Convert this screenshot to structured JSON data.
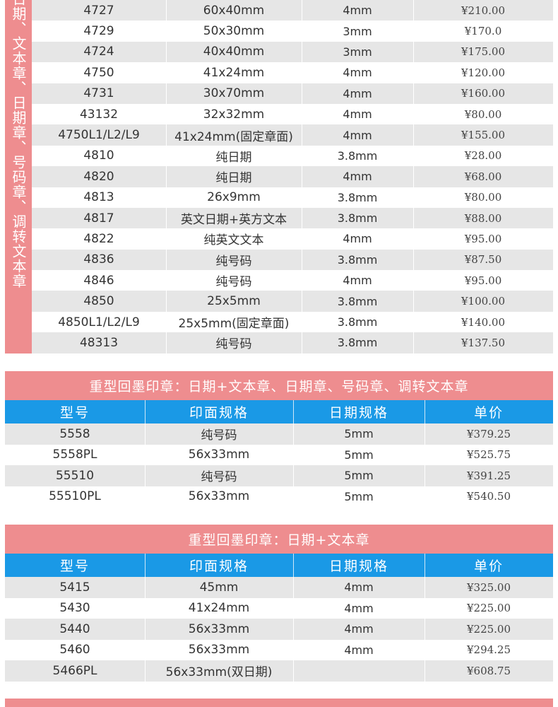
{
  "block1": {
    "vertical_label": "日期、文本章、日期章、号码章、调转文本章",
    "rows": [
      {
        "model": "4727",
        "size": "60x40mm",
        "date": "4mm",
        "price": "¥210.00"
      },
      {
        "model": "4729",
        "size": "50x30mm",
        "date": "3mm",
        "price": "¥170.0"
      },
      {
        "model": "4724",
        "size": "40x40mm",
        "date": "3mm",
        "price": "¥175.00"
      },
      {
        "model": "4750",
        "size": "41x24mm",
        "date": "4mm",
        "price": "¥120.00"
      },
      {
        "model": "4731",
        "size": "30x70mm",
        "date": "4mm",
        "price": "¥160.00"
      },
      {
        "model": "43132",
        "size": "32x32mm",
        "date": "4mm",
        "price": "¥80.00"
      },
      {
        "model": "4750L1/L2/L9",
        "size": "41x24mm(固定章面)",
        "date": "4mm",
        "price": "¥155.00"
      },
      {
        "model": "4810",
        "size": "纯日期",
        "date": "3.8mm",
        "price": "¥28.00"
      },
      {
        "model": "4820",
        "size": "纯日期",
        "date": "4mm",
        "price": "¥68.00"
      },
      {
        "model": "4813",
        "size": "26x9mm",
        "date": "3.8mm",
        "price": "¥80.00"
      },
      {
        "model": "4817",
        "size": "英文日期+英方文本",
        "date": "3.8mm",
        "price": "¥88.00"
      },
      {
        "model": "4822",
        "size": "纯英文文本",
        "date": "4mm",
        "price": "¥95.00"
      },
      {
        "model": "4836",
        "size": "纯号码",
        "date": "3.8mm",
        "price": "¥87.50"
      },
      {
        "model": "4846",
        "size": "纯号码",
        "date": "4mm",
        "price": "¥95.00"
      },
      {
        "model": "4850",
        "size": "25x5mm",
        "date": "3.8mm",
        "price": "¥100.00"
      },
      {
        "model": "4850L1/L2/L9",
        "size": "25x5mm(固定章面)",
        "date": "3.8mm",
        "price": "¥140.00"
      },
      {
        "model": "48313",
        "size": "纯号码",
        "date": "3.8mm",
        "price": "¥137.50"
      }
    ]
  },
  "sections": [
    {
      "title": "重型回墨印章：日期+文本章、日期章、号码章、调转文本章",
      "headers": {
        "model": "型号",
        "size": "印面规格",
        "date": "日期规格",
        "price": "单价"
      },
      "rows": [
        {
          "model": "5558",
          "size": "纯号码",
          "date": "5mm",
          "price": "¥379.25"
        },
        {
          "model": "5558PL",
          "size": "56x33mm",
          "date": "5mm",
          "price": "¥525.75"
        },
        {
          "model": "55510",
          "size": "纯号码",
          "date": "5mm",
          "price": "¥391.25"
        },
        {
          "model": "55510PL",
          "size": "56x33mm",
          "date": "5mm",
          "price": "¥540.50"
        }
      ]
    },
    {
      "title": "重型回墨印章：日期+文本章",
      "headers": {
        "model": "型号",
        "size": "印面规格",
        "date": "日期规格",
        "price": "单价"
      },
      "rows": [
        {
          "model": "5415",
          "size": "45mm",
          "date": "4mm",
          "price": "¥325.00"
        },
        {
          "model": "5430",
          "size": "41x24mm",
          "date": "4mm",
          "price": "¥225.00"
        },
        {
          "model": "5440",
          "size": "56x33mm",
          "date": "4mm",
          "price": "¥225.00"
        },
        {
          "model": "5460",
          "size": "56x33mm",
          "date": "4mm",
          "price": "¥294.25"
        },
        {
          "model": "5466PL",
          "size": "56x33mm(双日期)",
          "date": "",
          "price": "¥608.75"
        }
      ]
    }
  ],
  "colors": {
    "accent_pink": "#ee8d8f",
    "header_blue": "#1a99e6",
    "row_gray": "#e6e6e6"
  }
}
